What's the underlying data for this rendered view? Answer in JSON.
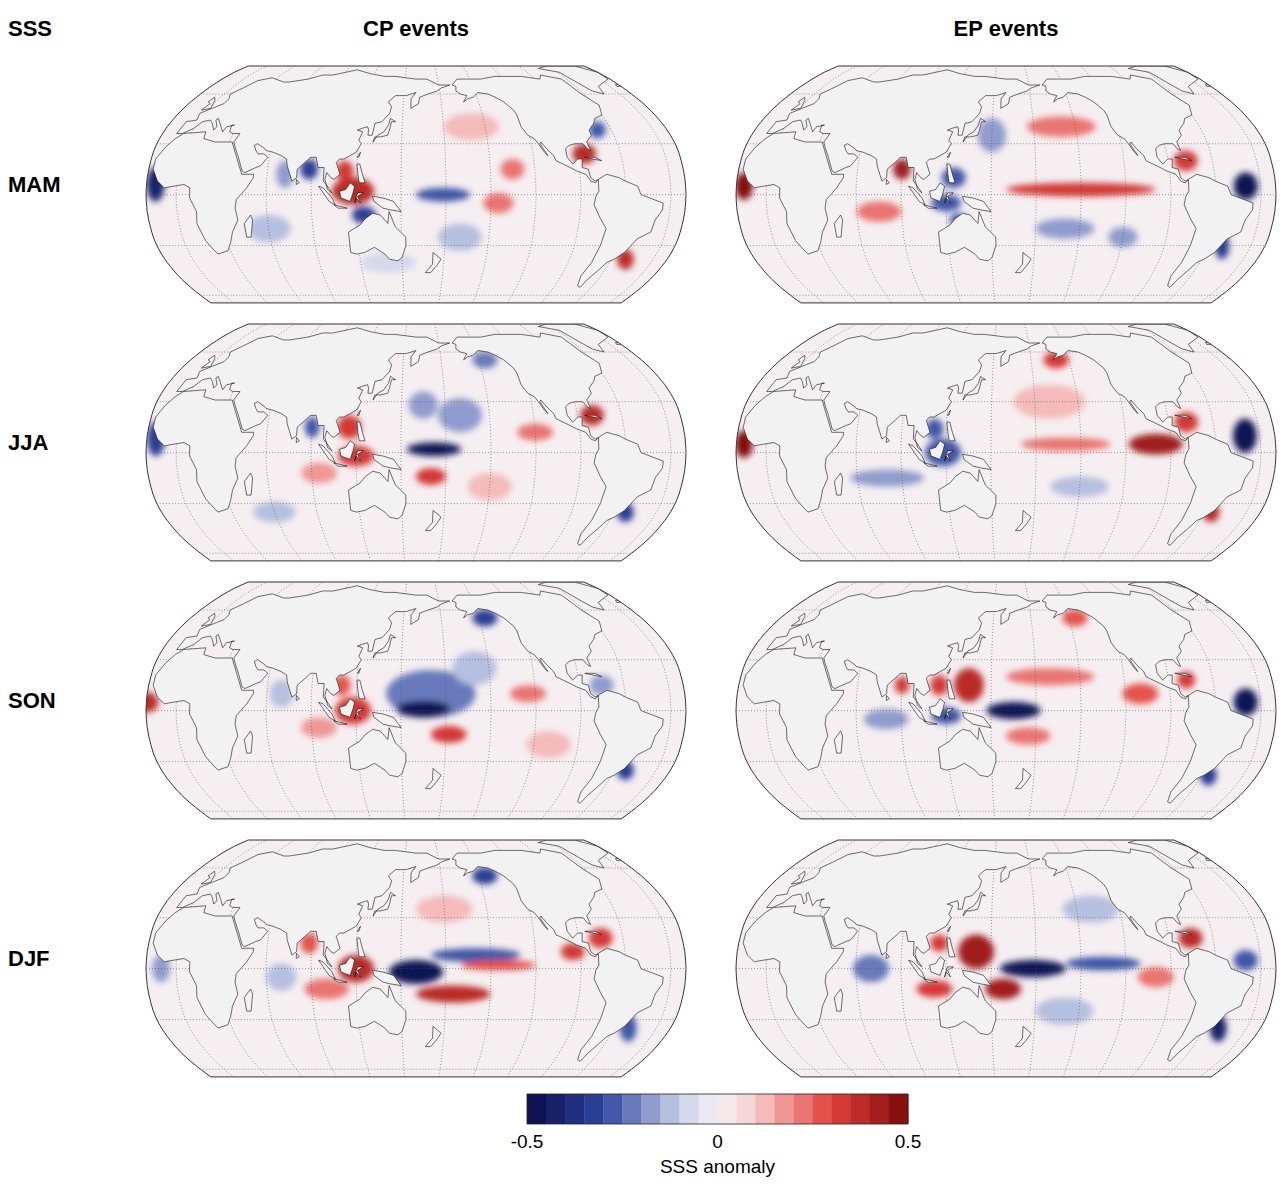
{
  "chart_data": {
    "type": "map",
    "title": "SSS",
    "column_titles": [
      "CP events",
      "EP events"
    ],
    "row_titles": [
      "MAM",
      "JJA",
      "SON",
      "DJF"
    ],
    "grid": true,
    "tick_labels": false,
    "center_lon": 160,
    "lat_range": [
      -65,
      80
    ],
    "lon_grid": [
      -180,
      -150,
      -120,
      -90,
      -60,
      -30,
      0,
      30,
      60,
      90,
      120,
      150
    ],
    "lat_grid": [
      -60,
      -30,
      0,
      30,
      60
    ],
    "colorbar": {
      "range": [
        -0.5,
        0.5
      ],
      "ticks": [
        -0.5,
        0,
        0.5
      ],
      "label": "SSS anomaly"
    },
    "panels": [
      [
        {
          "anomalies": [
            {
              "lon": 118,
              "lat": 2,
              "rx": 14,
              "ry": 8,
              "value": 0.35
            },
            {
              "lon": 112,
              "lat": 14,
              "rx": 6,
              "ry": 6,
              "value": 0.3
            },
            {
              "lon": 88,
              "lat": 15,
              "rx": 6,
              "ry": 6,
              "value": -0.35
            },
            {
              "lon": 72,
              "lat": 12,
              "rx": 6,
              "ry": 8,
              "value": -0.2
            },
            {
              "lon": 125,
              "lat": -12,
              "rx": 8,
              "ry": 5,
              "value": -0.35
            },
            {
              "lon": 178,
              "lat": 0,
              "rx": 18,
              "ry": 4,
              "value": -0.3
            },
            {
              "lon": 215,
              "lat": -5,
              "rx": 10,
              "ry": 6,
              "value": 0.2
            },
            {
              "lon": 225,
              "lat": 15,
              "rx": 8,
              "ry": 6,
              "value": 0.2
            },
            {
              "lon": -85,
              "lat": 24,
              "rx": 8,
              "ry": 6,
              "value": 0.35
            },
            {
              "lon": -70,
              "lat": 38,
              "rx": 6,
              "ry": 5,
              "value": -0.3
            },
            {
              "lon": -14,
              "lat": 6,
              "rx": 6,
              "ry": 10,
              "value": -0.4
            },
            {
              "lon": 190,
              "lat": -25,
              "rx": 15,
              "ry": 8,
              "value": -0.15
            },
            {
              "lon": -50,
              "lat": -38,
              "rx": 6,
              "ry": 6,
              "value": 0.35
            },
            {
              "lon": 140,
              "lat": -40,
              "rx": 20,
              "ry": 6,
              "value": -0.1
            },
            {
              "lon": 200,
              "lat": 40,
              "rx": 20,
              "ry": 8,
              "value": 0.1
            },
            {
              "lon": 60,
              "lat": -20,
              "rx": 15,
              "ry": 8,
              "value": -0.12
            }
          ]
        },
        {
          "anomalies": [
            {
              "lon": 210,
              "lat": 3,
              "rx": 50,
              "ry": 4,
              "value": 0.3
            },
            {
              "lon": 200,
              "lat": 40,
              "rx": 25,
              "ry": 6,
              "value": 0.2
            },
            {
              "lon": 125,
              "lat": 10,
              "rx": 8,
              "ry": 6,
              "value": -0.3
            },
            {
              "lon": 120,
              "lat": -5,
              "rx": 10,
              "ry": 5,
              "value": -0.3
            },
            {
              "lon": 90,
              "lat": 15,
              "rx": 6,
              "ry": 6,
              "value": 0.4
            },
            {
              "lon": 200,
              "lat": -20,
              "rx": 20,
              "ry": 6,
              "value": -0.2
            },
            {
              "lon": -40,
              "lat": 5,
              "rx": 8,
              "ry": 8,
              "value": -0.45
            },
            {
              "lon": -15,
              "lat": 5,
              "rx": 6,
              "ry": 8,
              "value": 0.45
            },
            {
              "lon": 128,
              "lat": -15,
              "rx": 6,
              "ry": 4,
              "value": -0.3
            },
            {
              "lon": -78,
              "lat": 20,
              "rx": 8,
              "ry": 6,
              "value": 0.3
            },
            {
              "lon": -50,
              "lat": -30,
              "rx": 5,
              "ry": 8,
              "value": -0.35
            },
            {
              "lon": 75,
              "lat": -10,
              "rx": 15,
              "ry": 6,
              "value": 0.2
            },
            {
              "lon": 150,
              "lat": 35,
              "rx": 10,
              "ry": 10,
              "value": -0.2
            },
            {
              "lon": 240,
              "lat": -25,
              "rx": 10,
              "ry": 6,
              "value": -0.2
            }
          ]
        }
      ],
      [
        {
          "anomalies": [
            {
              "lon": 172,
              "lat": 2,
              "rx": 18,
              "ry": 4,
              "value": -0.5
            },
            {
              "lon": 190,
              "lat": 22,
              "rx": 15,
              "ry": 10,
              "value": -0.2
            },
            {
              "lon": 165,
              "lat": 28,
              "rx": 10,
              "ry": 8,
              "value": -0.2
            },
            {
              "lon": 115,
              "lat": 15,
              "rx": 8,
              "ry": 7,
              "value": 0.3
            },
            {
              "lon": 120,
              "lat": -2,
              "rx": 12,
              "ry": 6,
              "value": 0.3
            },
            {
              "lon": 90,
              "lat": 15,
              "rx": 5,
              "ry": 6,
              "value": -0.3
            },
            {
              "lon": 170,
              "lat": -14,
              "rx": 10,
              "ry": 5,
              "value": 0.3
            },
            {
              "lon": 240,
              "lat": 12,
              "rx": 12,
              "ry": 5,
              "value": 0.2
            },
            {
              "lon": -80,
              "lat": 22,
              "rx": 8,
              "ry": 6,
              "value": 0.35
            },
            {
              "lon": 215,
              "lat": 55,
              "rx": 10,
              "ry": 5,
              "value": -0.25
            },
            {
              "lon": -52,
              "lat": -35,
              "rx": 6,
              "ry": 6,
              "value": -0.35
            },
            {
              "lon": -14,
              "lat": 8,
              "rx": 6,
              "ry": 10,
              "value": -0.35
            },
            {
              "lon": 95,
              "lat": -12,
              "rx": 12,
              "ry": 6,
              "value": 0.15
            },
            {
              "lon": 210,
              "lat": -20,
              "rx": 15,
              "ry": 8,
              "value": 0.1
            },
            {
              "lon": 60,
              "lat": -35,
              "rx": 15,
              "ry": 6,
              "value": -0.12
            }
          ]
        },
        {
          "anomalies": [
            {
              "lon": 260,
              "lat": 5,
              "rx": 18,
              "ry": 6,
              "value": 0.4
            },
            {
              "lon": 200,
              "lat": 5,
              "rx": 30,
              "ry": 4,
              "value": 0.2
            },
            {
              "lon": 118,
              "lat": 0,
              "rx": 12,
              "ry": 8,
              "value": -0.3
            },
            {
              "lon": 112,
              "lat": 14,
              "rx": 6,
              "ry": 6,
              "value": -0.3
            },
            {
              "lon": -40,
              "lat": 10,
              "rx": 8,
              "ry": 10,
              "value": -0.5
            },
            {
              "lon": -78,
              "lat": 18,
              "rx": 8,
              "ry": 6,
              "value": 0.3
            },
            {
              "lon": -15,
              "lat": 5,
              "rx": 6,
              "ry": 8,
              "value": 0.45
            },
            {
              "lon": 200,
              "lat": 55,
              "rx": 10,
              "ry": 5,
              "value": 0.3
            },
            {
              "lon": 80,
              "lat": -15,
              "rx": 25,
              "ry": 5,
              "value": -0.2
            },
            {
              "lon": 190,
              "lat": 30,
              "rx": 25,
              "ry": 10,
              "value": 0.1
            },
            {
              "lon": -55,
              "lat": -35,
              "rx": 6,
              "ry": 6,
              "value": 0.35
            },
            {
              "lon": 210,
              "lat": -20,
              "rx": 20,
              "ry": 6,
              "value": -0.15
            }
          ]
        }
      ],
      [
        {
          "anomalies": [
            {
              "lon": 170,
              "lat": 10,
              "rx": 30,
              "ry": 14,
              "value": -0.25
            },
            {
              "lon": 165,
              "lat": 1,
              "rx": 18,
              "ry": 5,
              "value": -0.5
            },
            {
              "lon": 200,
              "lat": 25,
              "rx": 15,
              "ry": 10,
              "value": -0.15
            },
            {
              "lon": 182,
              "lat": -14,
              "rx": 12,
              "ry": 5,
              "value": 0.3
            },
            {
              "lon": 118,
              "lat": 0,
              "rx": 12,
              "ry": 8,
              "value": 0.3
            },
            {
              "lon": 110,
              "lat": 15,
              "rx": 6,
              "ry": 6,
              "value": 0.25
            },
            {
              "lon": 95,
              "lat": -10,
              "rx": 12,
              "ry": 6,
              "value": 0.15
            },
            {
              "lon": 235,
              "lat": 10,
              "rx": 12,
              "ry": 5,
              "value": 0.2
            },
            {
              "lon": 215,
              "lat": 55,
              "rx": 10,
              "ry": 5,
              "value": -0.35
            },
            {
              "lon": -75,
              "lat": 15,
              "rx": 8,
              "ry": 6,
              "value": -0.2
            },
            {
              "lon": -20,
              "lat": 5,
              "rx": 8,
              "ry": 6,
              "value": 0.35
            },
            {
              "lon": -52,
              "lat": -35,
              "rx": 6,
              "ry": 6,
              "value": -0.35
            },
            {
              "lon": 70,
              "lat": 10,
              "rx": 8,
              "ry": 8,
              "value": -0.15
            },
            {
              "lon": 250,
              "lat": -20,
              "rx": 15,
              "ry": 8,
              "value": 0.1
            }
          ]
        },
        {
          "anomalies": [
            {
              "lon": 165,
              "lat": 0,
              "rx": 18,
              "ry": 5,
              "value": -0.5
            },
            {
              "lon": 135,
              "lat": 15,
              "rx": 10,
              "ry": 10,
              "value": 0.35
            },
            {
              "lon": 115,
              "lat": 15,
              "rx": 6,
              "ry": 6,
              "value": 0.3
            },
            {
              "lon": 190,
              "lat": 20,
              "rx": 30,
              "ry": 5,
              "value": 0.2
            },
            {
              "lon": 250,
              "lat": 10,
              "rx": 12,
              "ry": 6,
              "value": 0.25
            },
            {
              "lon": 120,
              "lat": -3,
              "rx": 10,
              "ry": 5,
              "value": -0.3
            },
            {
              "lon": 80,
              "lat": -5,
              "rx": 15,
              "ry": 6,
              "value": -0.2
            },
            {
              "lon": -40,
              "lat": 5,
              "rx": 8,
              "ry": 8,
              "value": -0.5
            },
            {
              "lon": -78,
              "lat": 18,
              "rx": 6,
              "ry": 5,
              "value": 0.3
            },
            {
              "lon": 90,
              "lat": 15,
              "rx": 5,
              "ry": 5,
              "value": 0.3
            },
            {
              "lon": 175,
              "lat": -15,
              "rx": 15,
              "ry": 5,
              "value": 0.2
            },
            {
              "lon": 215,
              "lat": 55,
              "rx": 10,
              "ry": 5,
              "value": 0.25
            },
            {
              "lon": -55,
              "lat": -38,
              "rx": 6,
              "ry": 6,
              "value": -0.35
            }
          ]
        }
      ],
      [
        {
          "anomalies": [
            {
              "lon": 160,
              "lat": -2,
              "rx": 18,
              "ry": 7,
              "value": -0.5
            },
            {
              "lon": 200,
              "lat": 8,
              "rx": 30,
              "ry": 4,
              "value": -0.3
            },
            {
              "lon": 215,
              "lat": 2,
              "rx": 25,
              "ry": 3,
              "value": 0.25
            },
            {
              "lon": 185,
              "lat": -15,
              "rx": 25,
              "ry": 5,
              "value": 0.35
            },
            {
              "lon": 120,
              "lat": 0,
              "rx": 12,
              "ry": 8,
              "value": 0.35
            },
            {
              "lon": 100,
              "lat": -12,
              "rx": 15,
              "ry": 6,
              "value": 0.2
            },
            {
              "lon": 88,
              "lat": 15,
              "rx": 6,
              "ry": 6,
              "value": 0.25
            },
            {
              "lon": -95,
              "lat": 10,
              "rx": 8,
              "ry": 5,
              "value": 0.3
            },
            {
              "lon": 215,
              "lat": 55,
              "rx": 10,
              "ry": 5,
              "value": -0.35
            },
            {
              "lon": -75,
              "lat": 18,
              "rx": 8,
              "ry": 6,
              "value": 0.3
            },
            {
              "lon": -50,
              "lat": -35,
              "rx": 6,
              "ry": 8,
              "value": -0.3
            },
            {
              "lon": -10,
              "lat": 0,
              "rx": 6,
              "ry": 8,
              "value": -0.2
            },
            {
              "lon": 70,
              "lat": -5,
              "rx": 10,
              "ry": 8,
              "value": -0.15
            },
            {
              "lon": 180,
              "lat": 35,
              "rx": 20,
              "ry": 8,
              "value": 0.12
            }
          ]
        },
        {
          "anomalies": [
            {
              "lon": 178,
              "lat": 0,
              "rx": 22,
              "ry": 5,
              "value": -0.5
            },
            {
              "lon": 225,
              "lat": 3,
              "rx": 25,
              "ry": 4,
              "value": -0.3
            },
            {
              "lon": 140,
              "lat": 10,
              "rx": 12,
              "ry": 10,
              "value": 0.4
            },
            {
              "lon": 158,
              "lat": -12,
              "rx": 12,
              "ry": 6,
              "value": 0.4
            },
            {
              "lon": 112,
              "lat": -12,
              "rx": 12,
              "ry": 5,
              "value": 0.3
            },
            {
              "lon": 70,
              "lat": 0,
              "rx": 12,
              "ry": 8,
              "value": -0.25
            },
            {
              "lon": 220,
              "lat": 35,
              "rx": 20,
              "ry": 8,
              "value": -0.15
            },
            {
              "lon": 260,
              "lat": -5,
              "rx": 12,
              "ry": 6,
              "value": 0.2
            },
            {
              "lon": -40,
              "lat": 5,
              "rx": 8,
              "ry": 6,
              "value": -0.3
            },
            {
              "lon": -75,
              "lat": 18,
              "rx": 8,
              "ry": 6,
              "value": 0.35
            },
            {
              "lon": -50,
              "lat": -35,
              "rx": 6,
              "ry": 8,
              "value": -0.4
            },
            {
              "lon": 115,
              "lat": 15,
              "rx": 6,
              "ry": 5,
              "value": 0.3
            },
            {
              "lon": 200,
              "lat": -25,
              "rx": 20,
              "ry": 8,
              "value": -0.15
            }
          ]
        }
      ]
    ]
  }
}
